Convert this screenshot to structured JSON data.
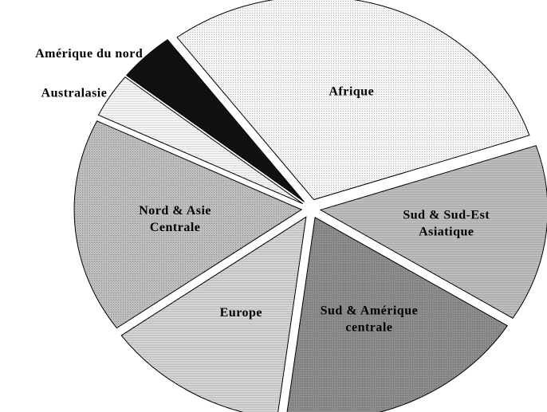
{
  "chart_data": {
    "type": "pie",
    "categories": [
      "Afrique",
      "Sud & Sud-Est Asiatique",
      "Sud & Amérique centrale",
      "Europe",
      "Nord & Asie Centrale",
      "Australasie",
      "Amérique du nord"
    ],
    "values": [
      30,
      14,
      18,
      13,
      17,
      3.5,
      4
    ],
    "colors": [
      "#f4f4f4",
      "#c4c4c4",
      "#8c8c8c",
      "#dcdcdc",
      "#bdbdbd",
      "#ffffff",
      "#111111"
    ]
  }
}
